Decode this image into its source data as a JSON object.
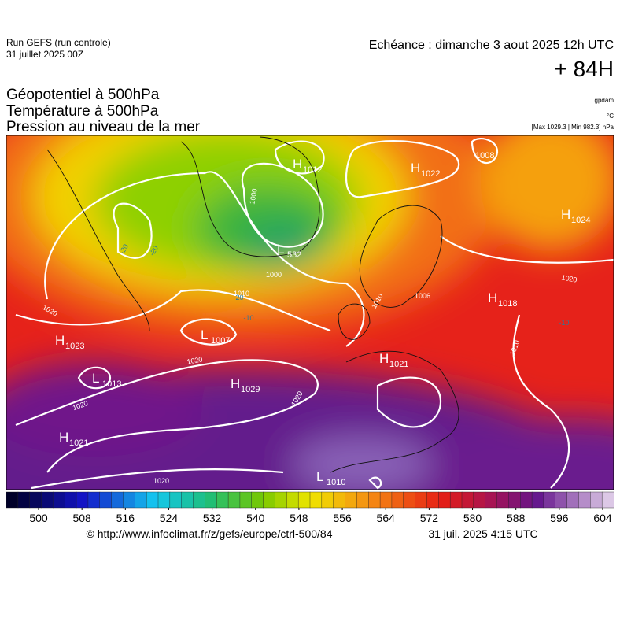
{
  "header": {
    "run": "Run GEFS (run controle)",
    "run_date": "31 juillet 2025 00Z",
    "valid": "Echéance : dimanche 3 aout 2025 12h UTC",
    "lead": "+ 84H"
  },
  "titles": [
    "Géopotentiel à 500hPa",
    "Température à 500hPa",
    "Pression au niveau de la mer"
  ],
  "units": {
    "geopotential": "gpdam",
    "temperature": "°C",
    "pressure_range": "[Max 1029.3 | Min 982.3] hPa"
  },
  "pressure_centers": [
    {
      "type": "H",
      "value": 1012
    },
    {
      "type": "H",
      "value": 1022
    },
    {
      "value": 1008
    },
    {
      "type": "H",
      "value": 1024
    },
    {
      "type": "L",
      "value": 532
    },
    {
      "type": "H",
      "value": 1018
    },
    {
      "type": "H",
      "value": 1023
    },
    {
      "type": "L",
      "value": 1007
    },
    {
      "type": "L",
      "value": 1013
    },
    {
      "type": "H",
      "value": 1029
    },
    {
      "type": "H",
      "value": 1021
    },
    {
      "type": "H",
      "value": 1021
    },
    {
      "type": "L",
      "value": 1010
    }
  ],
  "isobar_labels": [
    1000,
    1000,
    1010,
    1010,
    1006,
    1020,
    1020,
    1020,
    1020,
    1020,
    1020,
    1010
  ],
  "temperature_labels": [
    -20,
    -20,
    -20,
    -10,
    -10
  ],
  "colorbar": {
    "ticks": [
      500,
      508,
      516,
      524,
      532,
      540,
      548,
      556,
      564,
      572,
      580,
      588,
      596,
      604
    ]
  },
  "footer": {
    "url": "© http://www.infoclimat.fr/z/gefs/europe/ctrl-500/84",
    "timestamp": "31 juil. 2025  4:15 UTC"
  }
}
